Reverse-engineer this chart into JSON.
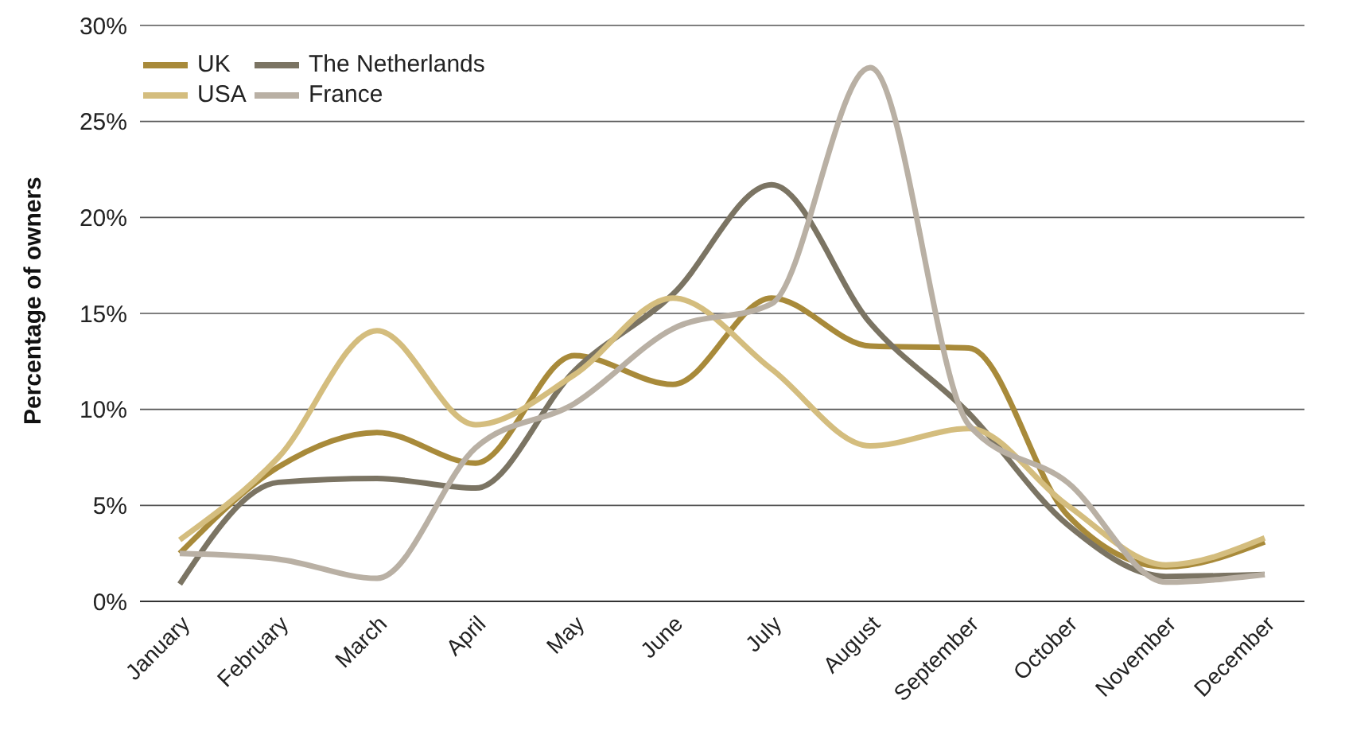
{
  "chart_data": {
    "type": "line",
    "ylabel": "Percentage of owners",
    "categories": [
      "January",
      "February",
      "March",
      "April",
      "May",
      "June",
      "July",
      "August",
      "September",
      "October",
      "November",
      "December"
    ],
    "series": [
      {
        "name": "UK",
        "color": "#a88a3a",
        "values": [
          2.5,
          7,
          8.8,
          7.2,
          12.8,
          11.3,
          15.8,
          13.3,
          13.2,
          4.5,
          1.8,
          3.1
        ]
      },
      {
        "name": "The Netherlands",
        "color": "#7b7463",
        "values": [
          0.9,
          6.2,
          6.4,
          5.9,
          12,
          16,
          21.7,
          14.5,
          9.8,
          4,
          1.3,
          1.4
        ]
      },
      {
        "name": "USA",
        "color": "#d4bd7e",
        "values": [
          3.2,
          7.5,
          14.1,
          9.2,
          11.8,
          15.8,
          12.1,
          8.1,
          9,
          5,
          1.9,
          3.3
        ]
      },
      {
        "name": "France",
        "color": "#b9b0a4",
        "values": [
          2.5,
          2.2,
          1.2,
          8,
          10.3,
          14.2,
          15.5,
          27.8,
          9.2,
          6.2,
          1,
          1.4
        ]
      }
    ],
    "ylim": [
      0,
      30
    ],
    "yticks": [
      {
        "value": 0,
        "label": "0%"
      },
      {
        "value": 5,
        "label": "5%"
      },
      {
        "value": 10,
        "label": "10%"
      },
      {
        "value": 15,
        "label": "15%"
      },
      {
        "value": 20,
        "label": "20%"
      },
      {
        "value": 25,
        "label": "25%"
      },
      {
        "value": 30,
        "label": "30%"
      }
    ],
    "grid": "y",
    "legend": "top left",
    "marker": "none",
    "line_style": "solid"
  }
}
